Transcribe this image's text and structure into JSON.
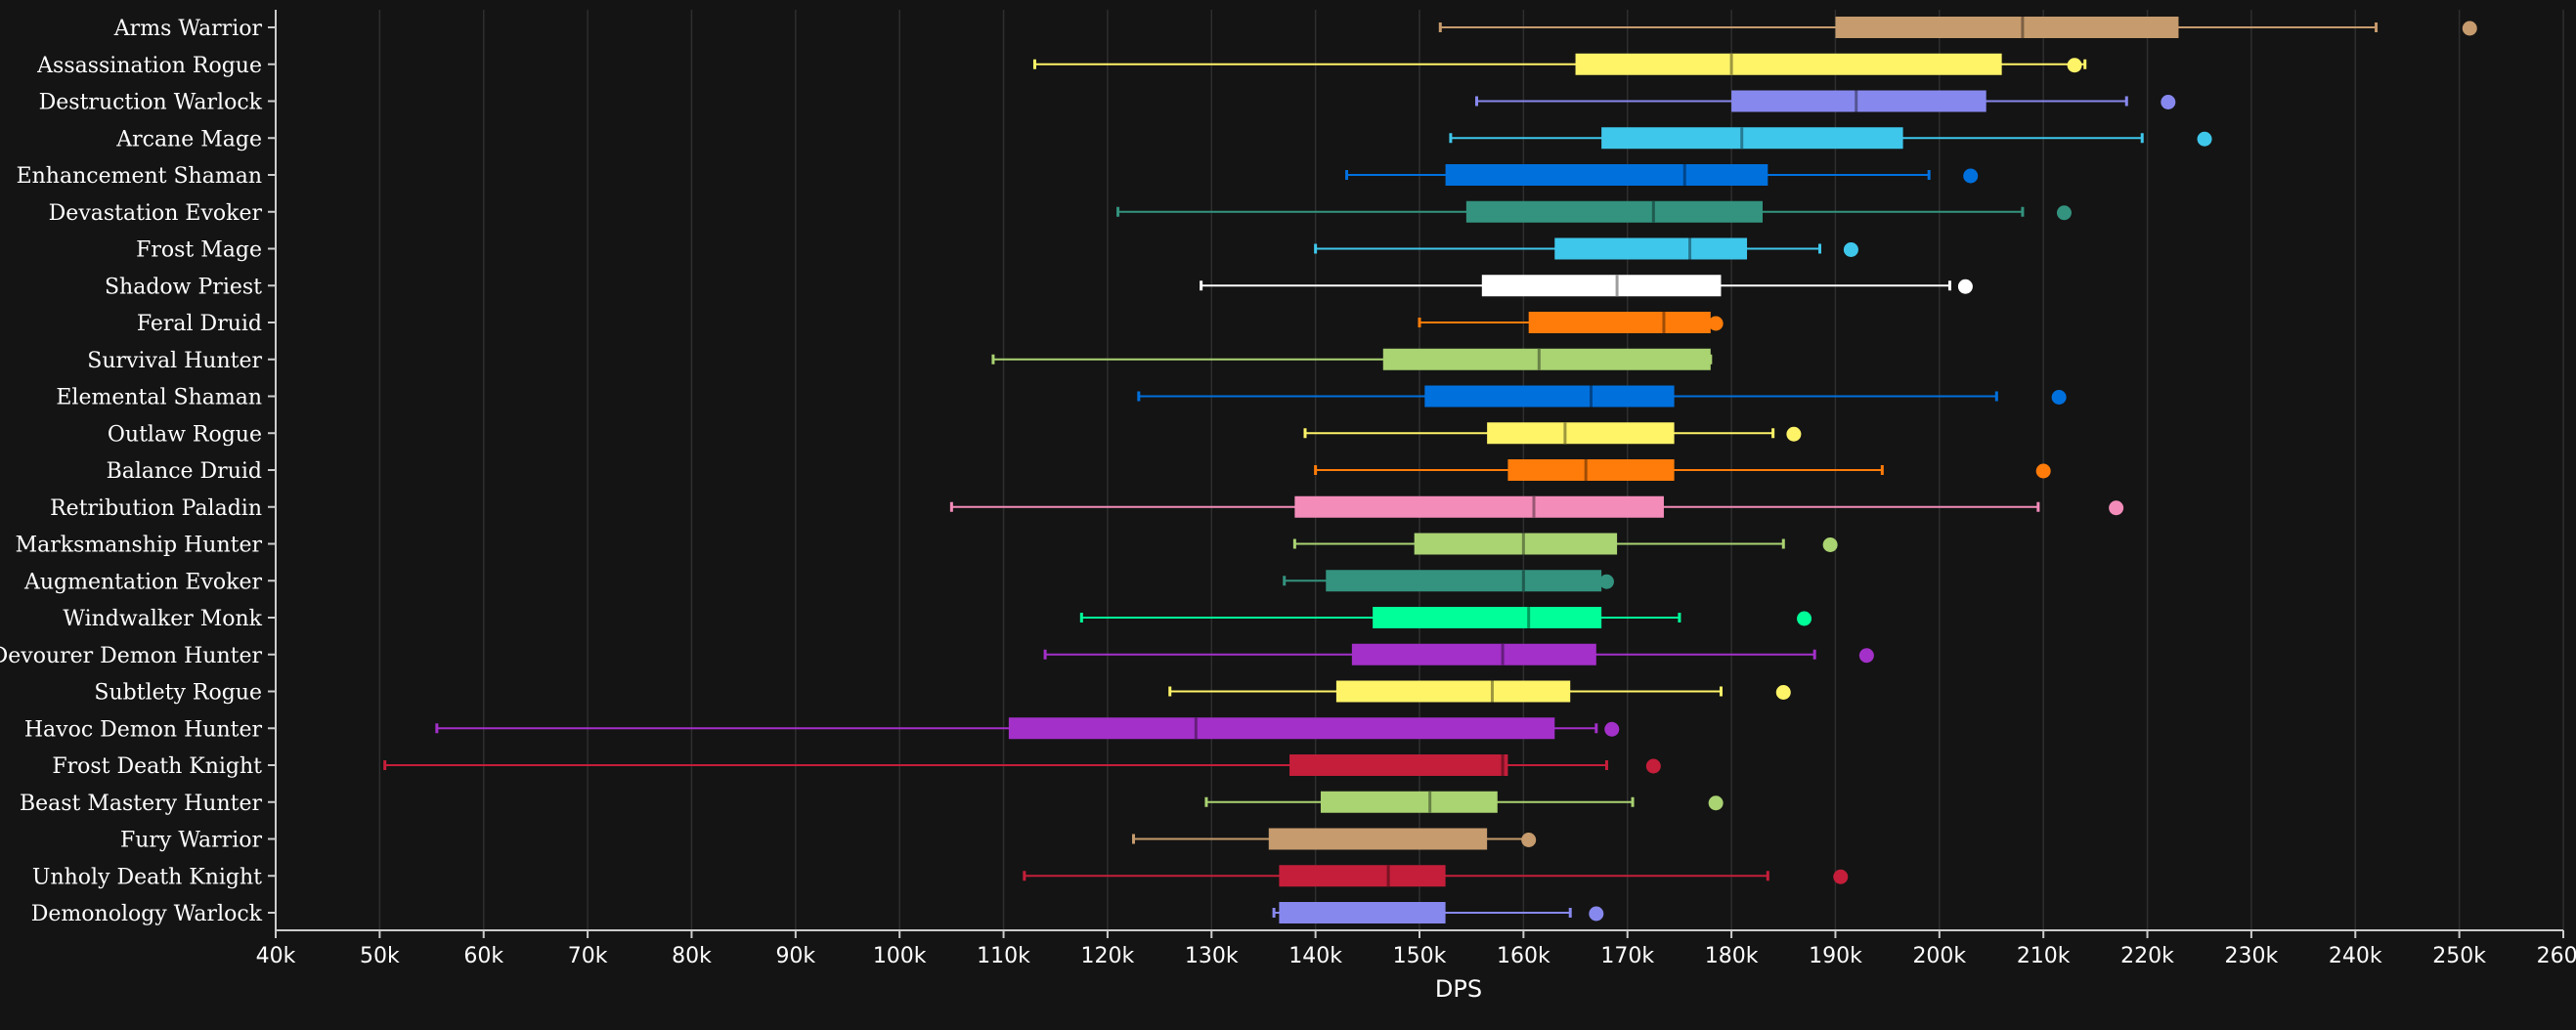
{
  "chart_data": {
    "type": "boxplot",
    "title": "",
    "xlabel": "DPS",
    "ylabel": "",
    "xlim": [
      40000,
      260000
    ],
    "x_ticks": [
      40000,
      50000,
      60000,
      70000,
      80000,
      90000,
      100000,
      110000,
      120000,
      130000,
      140000,
      150000,
      160000,
      170000,
      180000,
      190000,
      200000,
      210000,
      220000,
      230000,
      240000,
      250000,
      260000
    ],
    "x_tick_labels": [
      "40k",
      "50k",
      "60k",
      "70k",
      "80k",
      "90k",
      "100k",
      "110k",
      "120k",
      "130k",
      "140k",
      "150k",
      "160k",
      "170k",
      "180k",
      "190k",
      "200k",
      "210k",
      "220k",
      "230k",
      "240k",
      "250k",
      "260k"
    ],
    "grid": true,
    "legend": "none",
    "series": [
      {
        "category": "Arms Warrior",
        "color": "#C69B6D",
        "whisker_low": 152000,
        "q1": 190000,
        "median": 208000,
        "q3": 223000,
        "whisker_high": 242000,
        "outlier": 251000
      },
      {
        "category": "Assassination Rogue",
        "color": "#FFF468",
        "whisker_low": 113000,
        "q1": 165000,
        "median": 180000,
        "q3": 206000,
        "whisker_high": 214000,
        "outlier": 213000
      },
      {
        "category": "Destruction Warlock",
        "color": "#8788EE",
        "whisker_low": 155500,
        "q1": 180000,
        "median": 192000,
        "q3": 204500,
        "whisker_high": 218000,
        "outlier": 222000
      },
      {
        "category": "Arcane Mage",
        "color": "#3FC7EB",
        "whisker_low": 153000,
        "q1": 167500,
        "median": 181000,
        "q3": 196500,
        "whisker_high": 219500,
        "outlier": 225500
      },
      {
        "category": "Enhancement Shaman",
        "color": "#0070DD",
        "whisker_low": 143000,
        "q1": 152500,
        "median": 175500,
        "q3": 183500,
        "whisker_high": 199000,
        "outlier": 203000
      },
      {
        "category": "Devastation Evoker",
        "color": "#33937F",
        "whisker_low": 121000,
        "q1": 154500,
        "median": 172500,
        "q3": 183000,
        "whisker_high": 208000,
        "outlier": 212000
      },
      {
        "category": "Frost Mage",
        "color": "#3FC7EB",
        "whisker_low": 140000,
        "q1": 163000,
        "median": 176000,
        "q3": 181500,
        "whisker_high": 188500,
        "outlier": 191500
      },
      {
        "category": "Shadow Priest",
        "color": "#FFFFFF",
        "whisker_low": 129000,
        "q1": 156000,
        "median": 169000,
        "q3": 179000,
        "whisker_high": 201000,
        "outlier": 202500
      },
      {
        "category": "Feral Druid",
        "color": "#FF7C0A",
        "whisker_low": 150000,
        "q1": 160500,
        "median": 173500,
        "q3": 178000,
        "whisker_high": 178500,
        "outlier": 178500
      },
      {
        "category": "Survival Hunter",
        "color": "#AAD372",
        "whisker_low": 109000,
        "q1": 146500,
        "median": 161500,
        "q3": 178000,
        "whisker_high": 178000,
        "outlier": null
      },
      {
        "category": "Elemental Shaman",
        "color": "#0070DD",
        "whisker_low": 123000,
        "q1": 150500,
        "median": 166500,
        "q3": 174500,
        "whisker_high": 205500,
        "outlier": 211500
      },
      {
        "category": "Outlaw Rogue",
        "color": "#FFF468",
        "whisker_low": 139000,
        "q1": 156500,
        "median": 164000,
        "q3": 174500,
        "whisker_high": 184000,
        "outlier": 186000
      },
      {
        "category": "Balance Druid",
        "color": "#FF7C0A",
        "whisker_low": 140000,
        "q1": 158500,
        "median": 166000,
        "q3": 174500,
        "whisker_high": 194500,
        "outlier": 210000
      },
      {
        "category": "Retribution Paladin",
        "color": "#F48CBA",
        "whisker_low": 105000,
        "q1": 138000,
        "median": 161000,
        "q3": 173500,
        "whisker_high": 209500,
        "outlier": 217000
      },
      {
        "category": "Marksmanship Hunter",
        "color": "#AAD372",
        "whisker_low": 138000,
        "q1": 149500,
        "median": 160000,
        "q3": 169000,
        "whisker_high": 185000,
        "outlier": 189500
      },
      {
        "category": "Augmentation Evoker",
        "color": "#33937F",
        "whisker_low": 137000,
        "q1": 141000,
        "median": 160000,
        "q3": 167500,
        "whisker_high": 168000,
        "outlier": 168000
      },
      {
        "category": "Windwalker Monk",
        "color": "#00FF98",
        "whisker_low": 117500,
        "q1": 145500,
        "median": 160500,
        "q3": 167500,
        "whisker_high": 175000,
        "outlier": 187000
      },
      {
        "category": "Devourer Demon Hunter",
        "color": "#A330C9",
        "whisker_low": 114000,
        "q1": 143500,
        "median": 158000,
        "q3": 167000,
        "whisker_high": 188000,
        "outlier": 193000
      },
      {
        "category": "Subtlety Rogue",
        "color": "#FFF468",
        "whisker_low": 126000,
        "q1": 142000,
        "median": 157000,
        "q3": 164500,
        "whisker_high": 179000,
        "outlier": 185000
      },
      {
        "category": "Havoc Demon Hunter",
        "color": "#A330C9",
        "whisker_low": 55500,
        "q1": 110500,
        "median": 128500,
        "q3": 163000,
        "whisker_high": 167000,
        "outlier": 168500
      },
      {
        "category": "Frost Death Knight",
        "color": "#C41E3A",
        "whisker_low": 50500,
        "q1": 137500,
        "median": 158000,
        "q3": 158500,
        "whisker_high": 168000,
        "outlier": 172500
      },
      {
        "category": "Beast Mastery Hunter",
        "color": "#AAD372",
        "whisker_low": 129500,
        "q1": 140500,
        "median": 151000,
        "q3": 157500,
        "whisker_high": 170500,
        "outlier": 178500
      },
      {
        "category": "Fury Warrior",
        "color": "#C69B6D",
        "whisker_low": 122500,
        "q1": 135500,
        "median": null,
        "q3": 156500,
        "whisker_high": 160500,
        "outlier": 160500
      },
      {
        "category": "Unholy Death Knight",
        "color": "#C41E3A",
        "whisker_low": 112000,
        "q1": 136500,
        "median": 147000,
        "q3": 152500,
        "whisker_high": 183500,
        "outlier": 190500
      },
      {
        "category": "Demonology Warlock",
        "color": "#8788EE",
        "whisker_low": 136000,
        "q1": 136500,
        "median": null,
        "q3": 152500,
        "whisker_high": 164500,
        "outlier": 167000
      }
    ]
  }
}
